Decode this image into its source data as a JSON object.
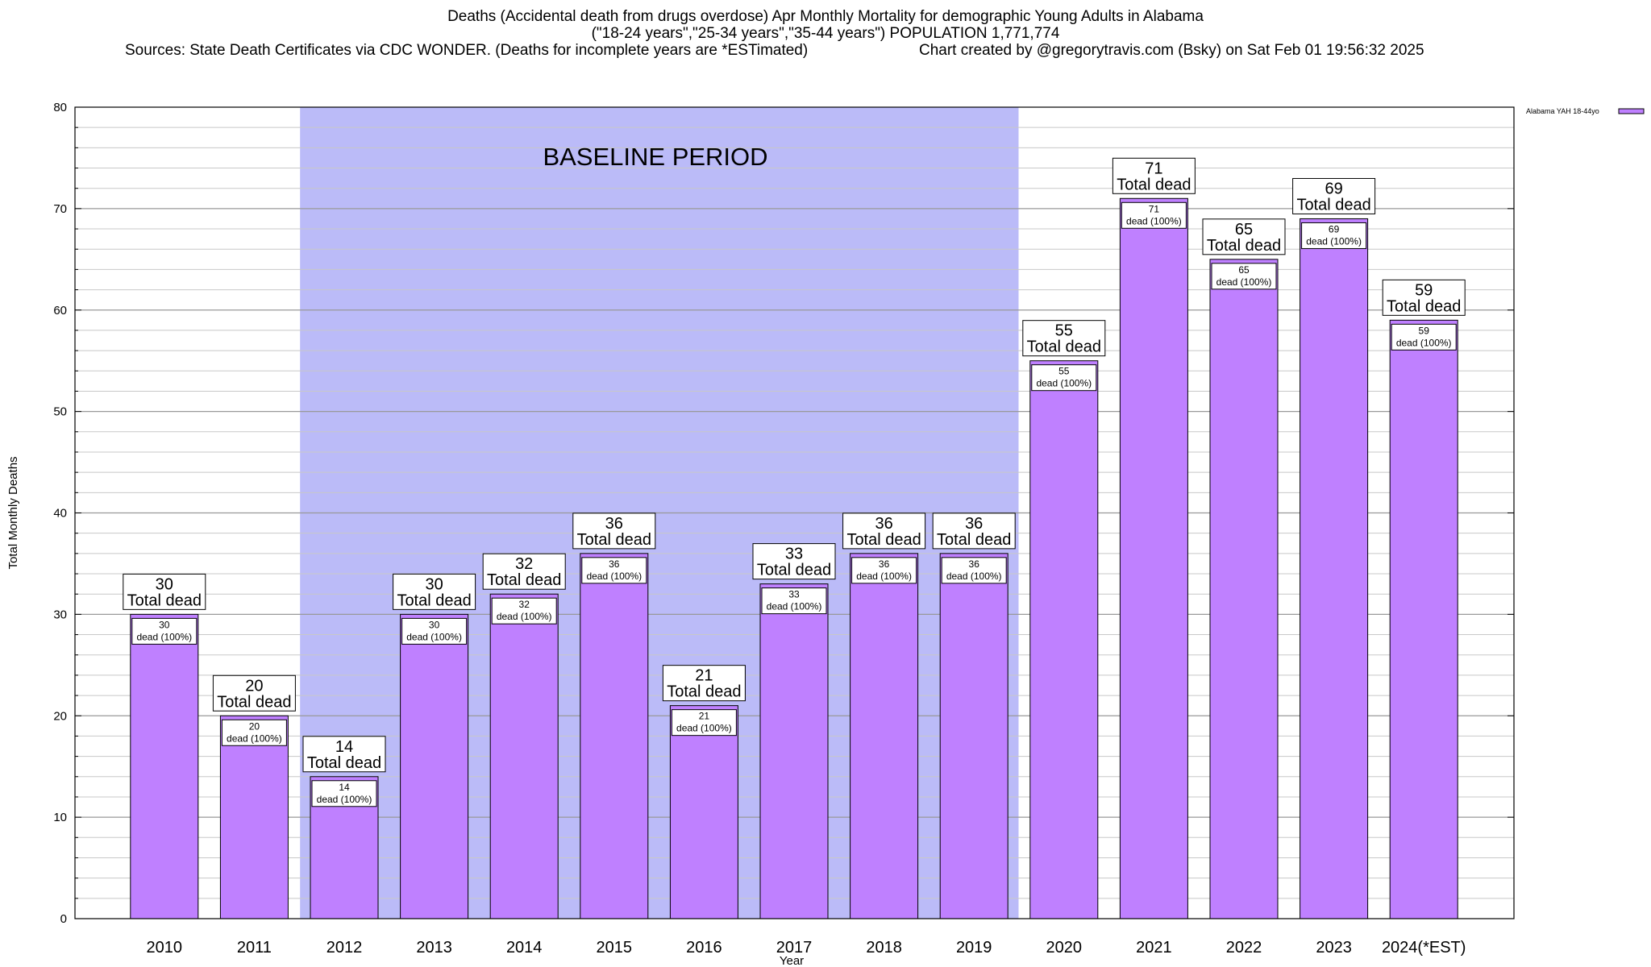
{
  "title": {
    "line1": "Deaths (Accidental death from drugs overdose) Apr Monthly Mortality for demographic Young Adults in Alabama",
    "line2": "(\"18-24 years\",\"25-34 years\",\"35-44 years\") POPULATION 1,771,774",
    "sources": "Sources: State Death Certificates via CDC WONDER. (Deaths for incomplete years are *ESTimated)",
    "credit": "Chart created by @gregorytravis.com (Bsky) on Sat Feb 01 19:56:32 2025"
  },
  "colors": {
    "bar": "#bf80ff",
    "baseline_band": "#bbbbf8",
    "grid": "#c8c8c8"
  },
  "chart_data": {
    "type": "bar",
    "categories": [
      "2010",
      "2011",
      "2012",
      "2013",
      "2014",
      "2015",
      "2016",
      "2017",
      "2018",
      "2019",
      "2020",
      "2021",
      "2022",
      "2023",
      "2024(*EST)"
    ],
    "series": [
      {
        "name": "Alabama YAH 18-44yo",
        "values": [
          30,
          20,
          14,
          30,
          32,
          36,
          21,
          33,
          36,
          36,
          55,
          71,
          65,
          69,
          59
        ]
      }
    ],
    "total_label": "Total dead",
    "inner_label": "dead (100%)",
    "xlabel": "Year",
    "ylabel": "Total Monthly Deaths",
    "ylim": [
      0,
      80
    ],
    "yticks": [
      0,
      10,
      20,
      30,
      40,
      50,
      60,
      70,
      80
    ],
    "grid": true,
    "legend_position": "top-right",
    "annotation": {
      "text": "BASELINE PERIOD",
      "start_category": "2012",
      "end_category": "2019"
    }
  }
}
